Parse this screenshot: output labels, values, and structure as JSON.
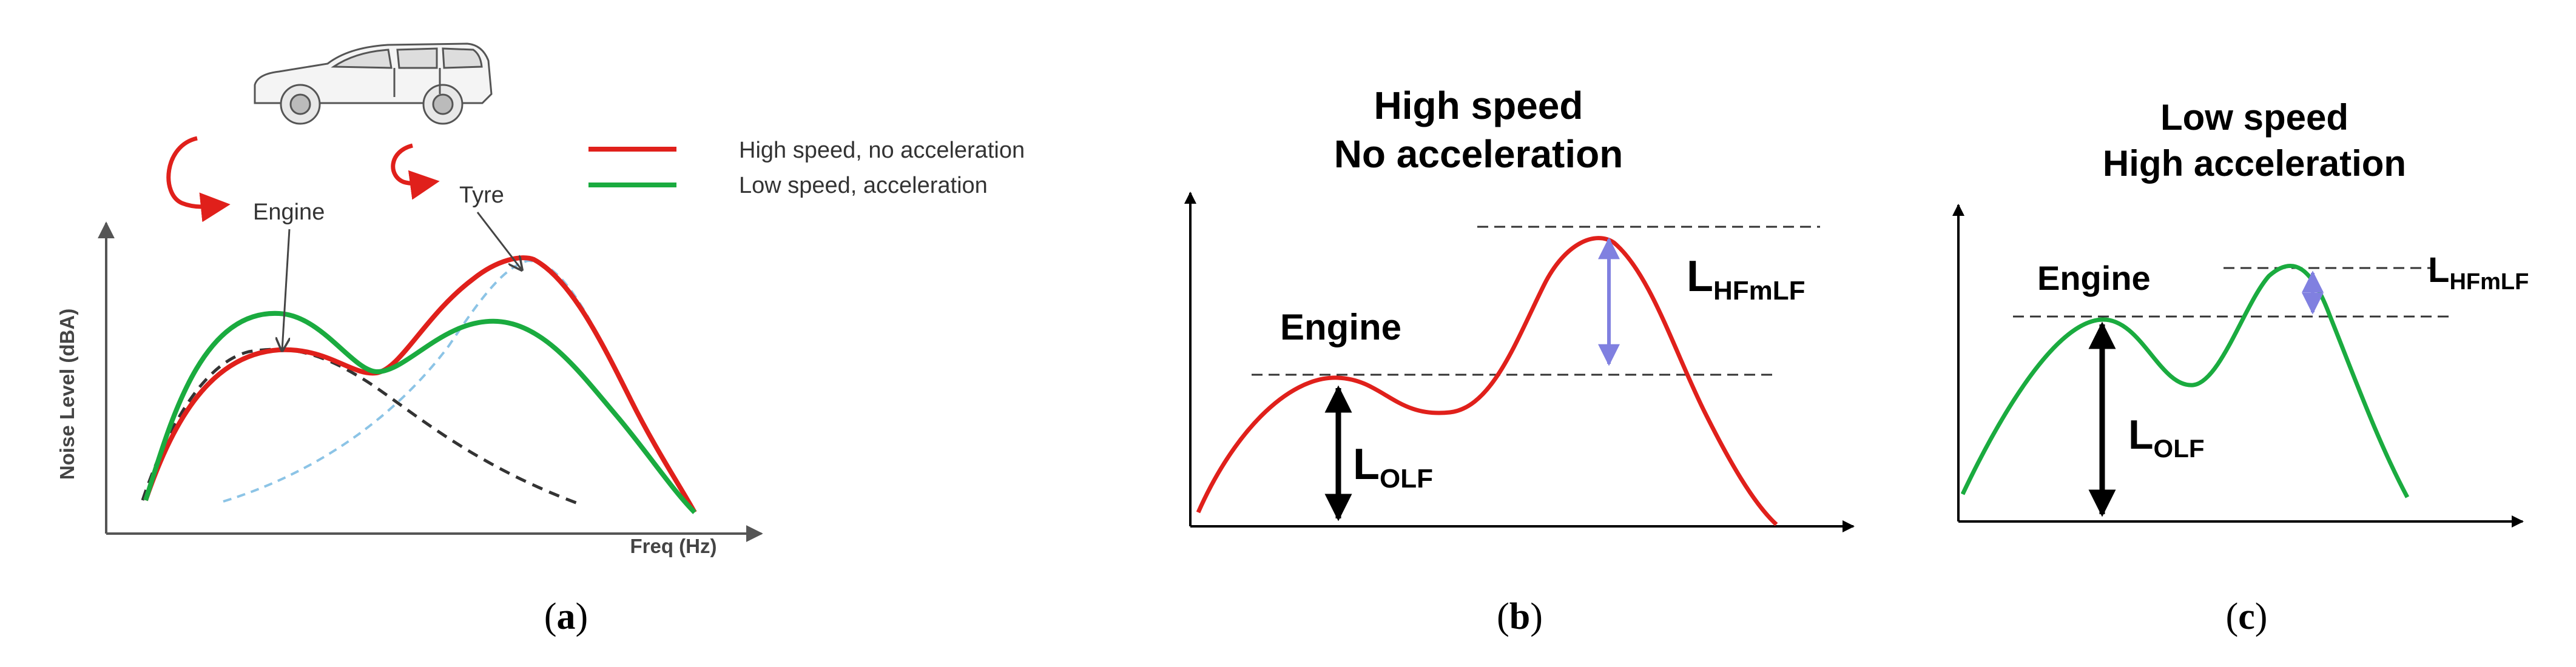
{
  "panel_a": {
    "caption_open": "(",
    "caption_letter": "a",
    "caption_close": ")",
    "ylabel": "Noise Level (dBA)",
    "xlabel": "Freq (Hz)",
    "label_engine": "Engine",
    "label_tyre": "Tyre",
    "legend": [
      {
        "label": "High speed, no acceleration",
        "color": "#e0201b"
      },
      {
        "label": "Low speed, acceleration",
        "color": "#1aab3f"
      }
    ],
    "vehicle_icon": "suv-car-icon"
  },
  "panel_b": {
    "caption_open": "(",
    "caption_letter": "b",
    "caption_close": ")",
    "title_line1": "High speed",
    "title_line2": "No acceleration",
    "label_engine": "Engine",
    "lolf_main": "L",
    "lolf_sub": "OLF",
    "lhf_main": "L",
    "lhf_sub": "HFmLF",
    "curve_color": "#e0201b",
    "marker_color": "#8080e0"
  },
  "panel_c": {
    "caption_open": "(",
    "caption_letter": "c",
    "caption_close": ")",
    "title_line1": "Low speed",
    "title_line2": "High acceleration",
    "label_engine": "Engine",
    "lolf_main": "L",
    "lolf_sub": "OLF",
    "lhf_main": "L",
    "lhf_sub": "HFmLF",
    "curve_color": "#1aab3f",
    "marker_color": "#8080e0"
  },
  "colors": {
    "red": "#e0201b",
    "green": "#1aab3f",
    "engine_dashed": "#333333",
    "tyre_dashed": "#8cc4e6",
    "axis": "#555555"
  }
}
